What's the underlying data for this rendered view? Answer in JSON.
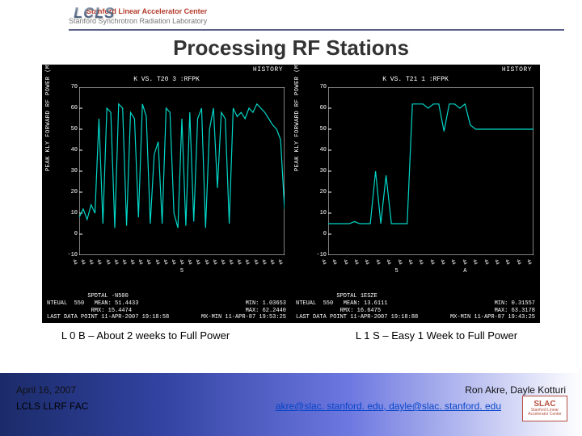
{
  "header": {
    "lcls_logo_text": "LCLS",
    "slac_line1": "Stanford Linear Accelerator Center",
    "slac_line2": "Stanford Synchrotron Radiation Laboratory"
  },
  "title": "Processing RF Stations",
  "chart_common": {
    "background_color": "#000000",
    "axis_color": "#ffffff",
    "trace_color": "#00d7c8",
    "gridline_color": "#ffffff",
    "ylim": [
      -10,
      70
    ],
    "ytick_step": 10,
    "ylabel": "PEAK  KLY  FORWARD  RF  POWER  (MW)",
    "font_family": "Courier New",
    "font_size_pt": 7
  },
  "panels": [
    {
      "plot_title": "HISTORY",
      "subtitle": "K VS. T20    3 :RFPK",
      "x_categories": [
        "44",
        "44",
        "44",
        "44",
        "44",
        "44",
        "44",
        "44",
        "44",
        "44",
        "44",
        "44",
        "44",
        "44",
        "44",
        "44",
        "44",
        "44",
        "44",
        "44",
        "44",
        "44",
        "44",
        "44",
        "44",
        "44"
      ],
      "x_center_labels": [
        "5"
      ],
      "series_y": [
        8,
        12,
        7,
        14,
        10,
        55,
        5,
        60,
        58,
        3,
        62,
        60,
        4,
        58,
        55,
        8,
        62,
        56,
        5,
        38,
        44,
        5,
        60,
        58,
        10,
        3,
        55,
        4,
        58,
        6,
        55,
        60,
        3,
        50,
        60,
        22,
        58,
        55,
        5,
        60,
        56,
        58,
        55,
        60,
        58,
        62,
        60,
        58,
        55,
        52,
        50,
        45,
        12
      ],
      "stats": {
        "SPDTAL": "-N500",
        "NTEUAL": "550",
        "MEAN": "51.4433",
        "RMX": "15.4474",
        "MIN": "1.03653",
        "MAX": "62.2440",
        "last_data_point": "LAST DATA POINT 11-APR-2007 19:18:58",
        "mx_min": "MX-MIN 11-APR-87 19:53:25"
      }
    },
    {
      "plot_title": "HISTORY",
      "subtitle": "K VS. T21    1 :RFPK",
      "x_categories": [
        "44",
        "44",
        "44",
        "44",
        "44",
        "44",
        "44",
        "44",
        "44",
        "44",
        "44",
        "44",
        "44",
        "44",
        "44",
        "44",
        "44",
        "44",
        "44",
        "44"
      ],
      "x_center_labels": [
        "5",
        "A"
      ],
      "series_y": [
        5,
        5,
        5,
        5,
        5,
        6,
        5,
        5,
        5,
        30,
        5,
        28,
        5,
        5,
        5,
        5,
        62,
        62,
        62,
        60,
        62,
        62,
        49,
        62,
        62,
        60,
        62,
        52,
        50,
        50,
        50,
        50,
        50,
        50,
        50,
        50,
        50,
        50,
        50,
        50
      ],
      "stats": {
        "SPDTAL": "1ESZE",
        "NTEUAL": "550",
        "MEAN": "13.6111",
        "RMX": "16.6475",
        "MIN": "0.31557",
        "MAX": "63.3178",
        "last_data_point": "LAST DATA POINT 11-APR-2007 19:18:88",
        "mx_min": "MX-MIN 11-APR-87 19:43:25"
      }
    }
  ],
  "captions": [
    "L 0 B – About 2 weeks to Full Power",
    "L 1 S – Easy 1 Week to Full Power"
  ],
  "footer": {
    "date": "April 16, 2007",
    "names": "Ron Akre, Dayle Kotturi",
    "org": "LCLS LLRF FAC",
    "emails": "akre@slac. stanford. edu, dayle@slac. stanford. edu",
    "slac_badge_lines": [
      "Stanford",
      "Linear",
      "Accelerator",
      "Center"
    ],
    "band_gradient": [
      "#1b2b69",
      "#3243a2",
      "#6d78e0",
      "#ffffff"
    ]
  }
}
